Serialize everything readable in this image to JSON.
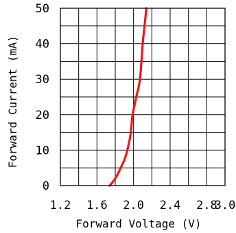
{
  "chart_data": {
    "type": "line",
    "title": "",
    "xlabel": "Forward Voltage (V)",
    "ylabel": "Forward Current (mA)",
    "xlim": [
      1.2,
      3.0
    ],
    "ylim": [
      0,
      50
    ],
    "x_ticks": [
      1.2,
      1.4,
      1.6,
      1.8,
      2.0,
      2.2,
      2.4,
      2.6,
      2.8,
      3.0
    ],
    "x_tick_labels": [
      "1.2",
      "1.6",
      "2.0",
      "2.4",
      "2.8",
      "3.0"
    ],
    "x_tick_label_values": [
      1.2,
      1.6,
      2.0,
      2.4,
      2.8,
      3.0
    ],
    "y_ticks": [
      0,
      5,
      10,
      15,
      20,
      25,
      30,
      35,
      40,
      45,
      50
    ],
    "y_tick_labels": [
      "0",
      "10",
      "20",
      "30",
      "40",
      "50"
    ],
    "y_tick_label_values": [
      0,
      10,
      20,
      30,
      40,
      50
    ],
    "grid": true,
    "legend": "none",
    "series": [
      {
        "color": "#e8191e",
        "x": [
          1.74,
          1.8,
          1.86,
          1.91,
          1.95,
          1.97,
          1.99,
          2.03,
          2.07,
          2.1,
          2.12,
          2.14
        ],
        "y": [
          0,
          2,
          5,
          8,
          12,
          15,
          20,
          25,
          30,
          40,
          45,
          50
        ]
      }
    ]
  }
}
